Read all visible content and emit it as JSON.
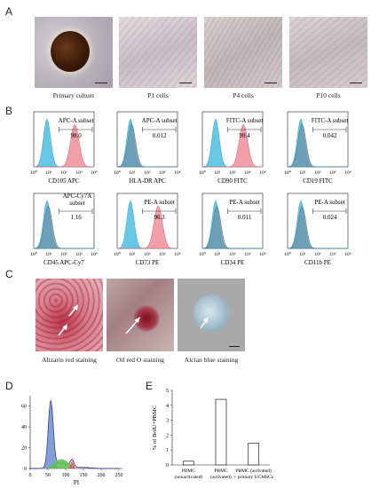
{
  "panels": {
    "A": "A",
    "B": "B",
    "C": "C",
    "D": "D",
    "E": "E"
  },
  "panelA": {
    "captions": [
      "Primary culture",
      "P1 cells",
      "P4 cells",
      "P10 cells"
    ]
  },
  "panelB": {
    "plots": [
      {
        "gate": "APC-A subset",
        "value": "98.0",
        "xlabel": "CD105  APC",
        "shift": true
      },
      {
        "gate": "APC-A subset",
        "value": "0.012",
        "xlabel": "HLA-DR  APC",
        "shift": false
      },
      {
        "gate": "FITC-A subset",
        "value": "99.4",
        "xlabel": "CD90  FITC",
        "shift": true
      },
      {
        "gate": "FITC-A subset",
        "value": "0.042",
        "xlabel": "CD19  FITC",
        "shift": false
      },
      {
        "gate": "APC-Cy7A subset",
        "value": "1.16",
        "xlabel": "CD45  APC-Cy7",
        "shift": false
      },
      {
        "gate": "PE-A subset",
        "value": "96.3",
        "xlabel": "CD73  PE",
        "shift": true
      },
      {
        "gate": "PE-A subset",
        "value": "0.011",
        "xlabel": "CD34  PE",
        "shift": false
      },
      {
        "gate": "PE-A subset",
        "value": "0.024",
        "xlabel": "CD11b  PE",
        "shift": false
      }
    ],
    "ticks": [
      "10⁰",
      "10¹",
      "10²",
      "10³",
      "10⁴"
    ]
  },
  "panelC": {
    "captions": [
      "Alizarin red staining",
      "Oil red O staining",
      "Alcian blue staining"
    ]
  },
  "panelD": {
    "xlabel": "PI",
    "xticks": [
      "0",
      "50",
      "100",
      "150",
      "200",
      "250"
    ],
    "yticks": [
      "0",
      "20",
      "40",
      "60"
    ]
  },
  "chart_data": {
    "type": "bar",
    "categories": [
      "PBMC (nonactivated)",
      "PBMC (activated)",
      "PBMC (activated) + primary UCMSCs"
    ],
    "values": [
      0.25,
      4.4,
      1.45
    ],
    "ylabel": "% of BrdU+PBMC",
    "ylim": [
      0,
      5
    ],
    "yticks": [
      "0",
      "1",
      "2",
      "3",
      "4",
      "5"
    ]
  },
  "panelE_labels": [
    "PBMC\n(nonactivated)",
    "PBMC\n(activated)",
    "PBMC (activated)\n+ primary UCMSCs"
  ],
  "colors": {
    "blue": "#67c8e6",
    "red": "#f29aa4",
    "overlap": "#6f93a5"
  }
}
